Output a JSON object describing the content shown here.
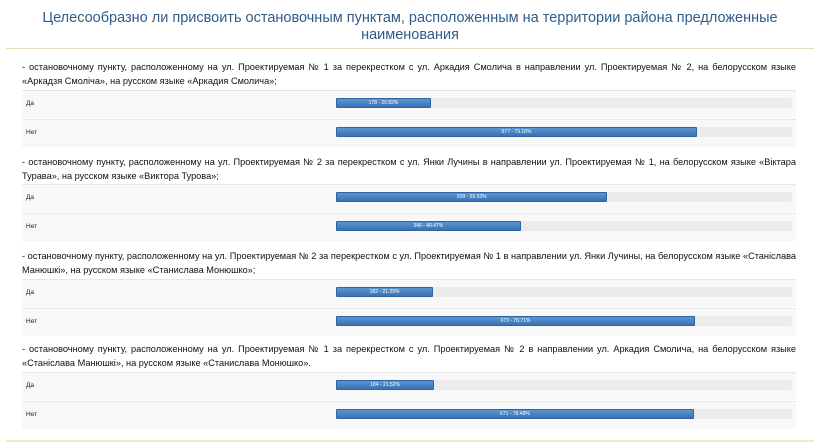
{
  "title": "Целесообразно ли присвоить остановочным пунктам, расположенным на территории района предложенные наименования",
  "questions": [
    {
      "text": "- остановочному пункту, расположенному на ул. Проектируемая № 1 за перекрестком с ул. Аркадия Смолича в направлении ул. Проектируемая № 2, на белорусском языке «Аркадзя Смоліча», на русском языке «Аркадия Смолича»;",
      "answers": [
        {
          "label": "Да",
          "bar_text": "178 - 20.82%",
          "share": 0.2082
        },
        {
          "label": "Нет",
          "bar_text": "677 - 79.18%",
          "share": 0.7918
        }
      ]
    },
    {
      "text": "- остановочному пункту, расположенному на ул. Проектируемая № 2 за перекрестком с ул. Янки Лучины в направлении ул. Проектируемая № 1, на белорусском языке «Віктара Турава», на русском языке «Виктора Турова»;",
      "answers": [
        {
          "label": "Да",
          "bar_text": "509 - 59.53%",
          "share": 0.5953
        },
        {
          "label": "Нет",
          "bar_text": "346 - 40.47%",
          "share": 0.4047
        }
      ]
    },
    {
      "text": "- остановочному пункту, расположенному на ул. Проектируемая № 2 за перекрестком с ул. Проектируемая № 1 в направлении ул. Янки Лучины, на белорусском языке «Станіслава Манюшкі», на русском языке «Станислава Монюшко»;",
      "answers": [
        {
          "label": "Да",
          "bar_text": "182 - 21.29%",
          "share": 0.2129
        },
        {
          "label": "Нет",
          "bar_text": "673 - 78.71%",
          "share": 0.7871
        }
      ]
    },
    {
      "text": "- остановочному пункту, расположенному на ул. Проектируемая № 1 за перекрестком с ул. Проектируемая № 2 в направлении ул. Аркадия Смолича, на белорусском языке «Станіслава Манюшкі», на русском языке «Станислава Монюшко».",
      "answers": [
        {
          "label": "Да",
          "bar_text": "184 - 21.52%",
          "share": 0.2152
        },
        {
          "label": "Нет",
          "bar_text": "671 - 78.48%",
          "share": 0.7848
        }
      ]
    }
  ]
}
